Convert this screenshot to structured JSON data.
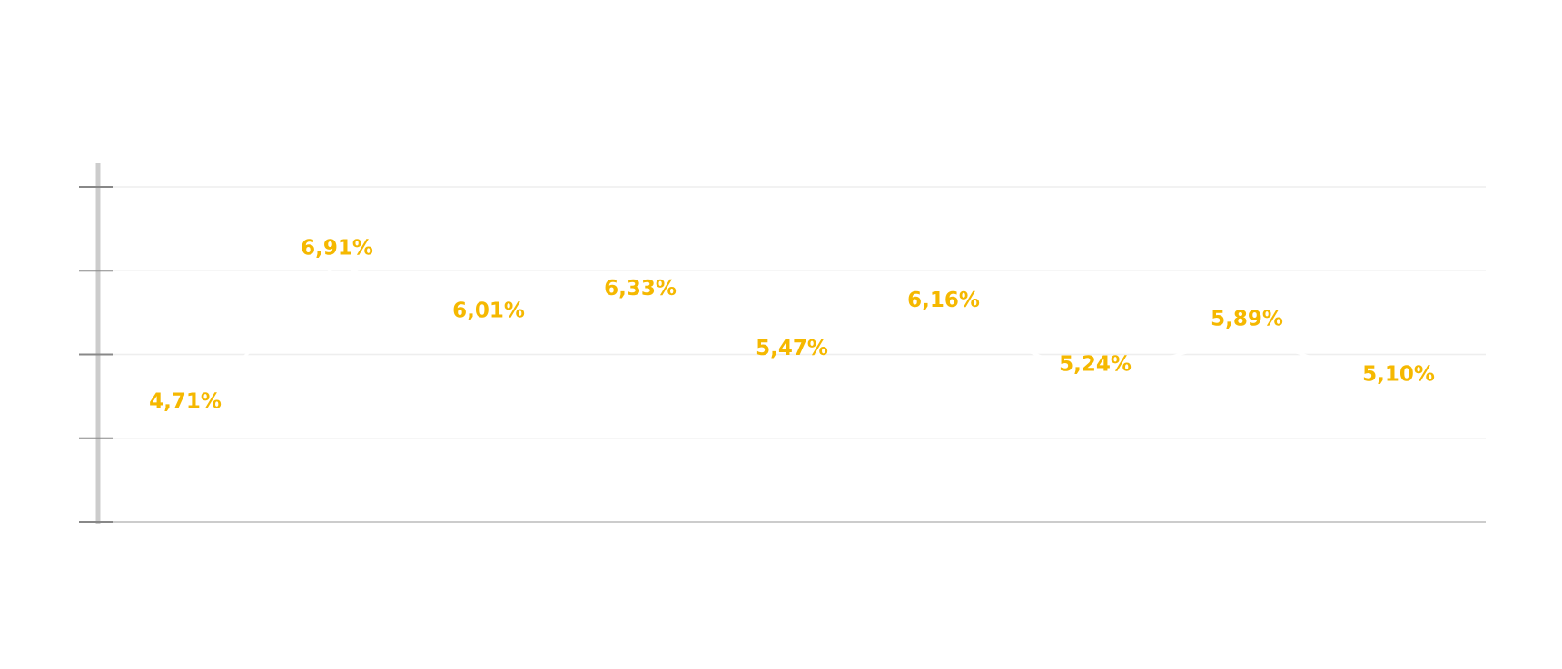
{
  "chart_data": {
    "type": "line",
    "categories": [
      null,
      null,
      null,
      null,
      null,
      null,
      null,
      null,
      null
    ],
    "series": [
      {
        "color": "#ffffff",
        "values": [
          4.71,
          6.91,
          6.01,
          6.33,
          5.47,
          6.16,
          5.24,
          5.89,
          5.1
        ],
        "value_labels": [
          "4,71%",
          "6,91%",
          "6,01%",
          "6,33%",
          "5,47%",
          "6,16%",
          "5,24%",
          "5,89%",
          "5,10%"
        ],
        "label_color": "#f5b800"
      }
    ],
    "ylim": [
      3.2,
      8
    ],
    "yticks": [
      3.2,
      4.4,
      5.6,
      6.8,
      8
    ],
    "grid": true
  }
}
